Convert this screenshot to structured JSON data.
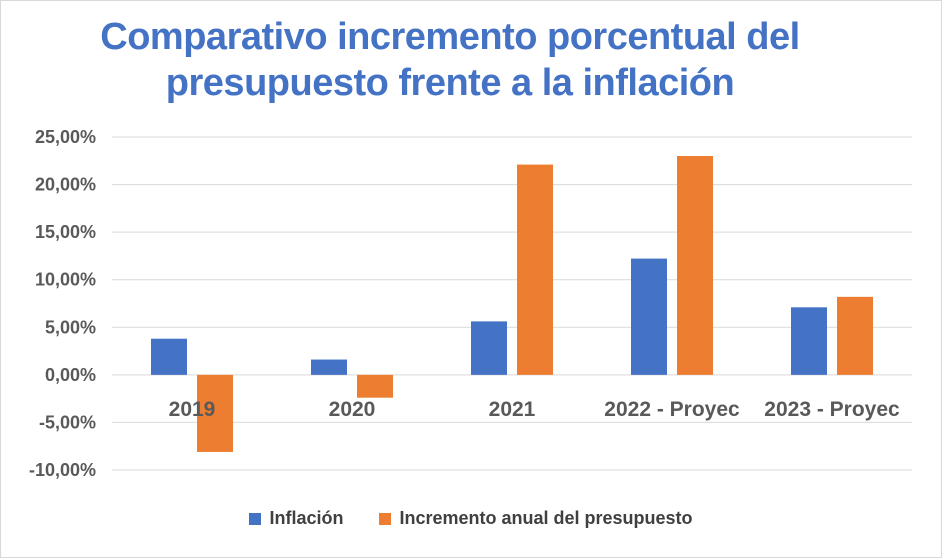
{
  "chart_data": {
    "type": "bar",
    "title": "Comparativo incremento porcentual del presupuesto frente a la inflación",
    "categories": [
      "2019",
      "2020",
      "2021",
      "2022 - Proyec",
      "2023 - Proyec"
    ],
    "series": [
      {
        "name": "Inflación",
        "color": "#4472c4",
        "values": [
          3.8,
          1.61,
          5.62,
          12.22,
          7.1
        ]
      },
      {
        "name": "Incremento anual del presupuesto",
        "color": "#ed7d31",
        "values": [
          -8.1,
          -2.4,
          22.1,
          23.0,
          8.2
        ]
      }
    ],
    "ylim": [
      -10,
      25
    ],
    "yticks": [
      "25,00%",
      "20,00%",
      "15,00%",
      "10,00%",
      "5,00%",
      "0,00%",
      "-5,00%",
      "-10,00%"
    ],
    "ytick_values": [
      25,
      20,
      15,
      10,
      5,
      0,
      -5,
      -10
    ],
    "grid": true,
    "legend_position": "bottom"
  }
}
